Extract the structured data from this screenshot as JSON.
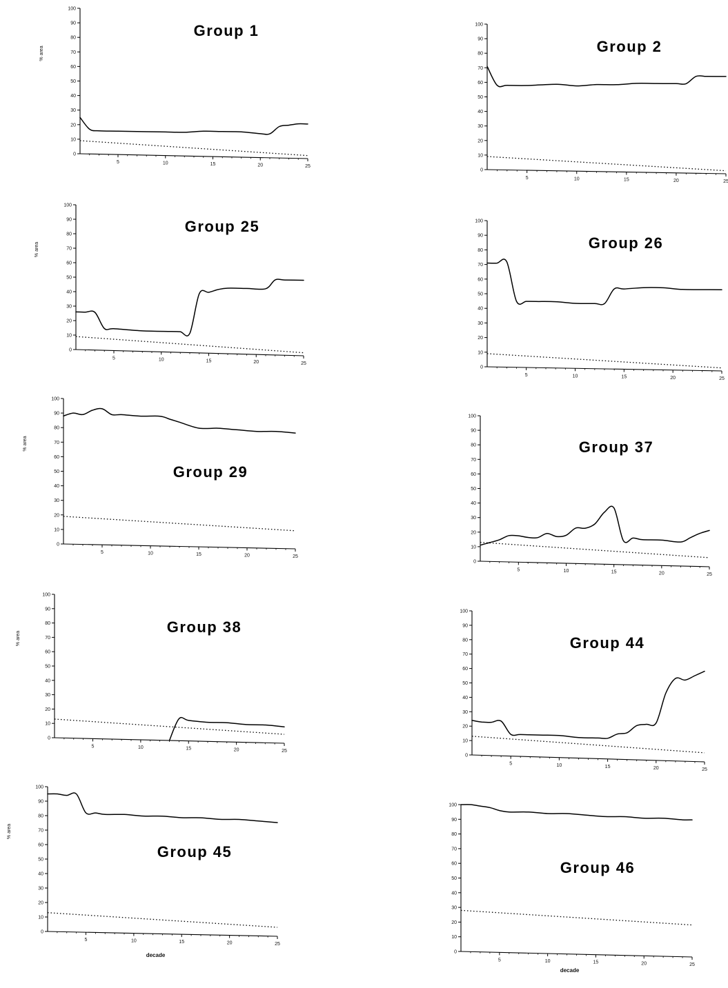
{
  "chart_data": [
    {
      "type": "line",
      "title": "Group 1",
      "xlabel": "",
      "ylabel": "% area",
      "xlim": [
        1,
        25
      ],
      "ylim": [
        0,
        100
      ],
      "xticks": [
        5,
        10,
        15,
        20,
        25
      ],
      "yticks": [
        0,
        10,
        20,
        30,
        40,
        50,
        60,
        70,
        80,
        90,
        100
      ],
      "series": [
        {
          "style": "solid",
          "x": [
            1,
            2,
            3,
            5,
            8,
            10,
            12,
            14,
            16,
            18,
            20,
            21,
            22,
            23,
            24,
            25
          ],
          "y": [
            25,
            17,
            16,
            16,
            16,
            16,
            16,
            17,
            17,
            17,
            16,
            16,
            21,
            22,
            23,
            23
          ]
        },
        {
          "style": "dotted",
          "x": [
            1,
            25
          ],
          "y": [
            9,
            2
          ]
        }
      ]
    },
    {
      "type": "line",
      "title": "Group 2",
      "xlabel": "",
      "ylabel": "",
      "xlim": [
        1,
        25
      ],
      "ylim": [
        0,
        100
      ],
      "xticks": [
        5,
        10,
        15,
        20,
        25
      ],
      "yticks": [
        0,
        10,
        20,
        30,
        40,
        50,
        60,
        70,
        80,
        90,
        100
      ],
      "series": [
        {
          "style": "solid",
          "x": [
            1,
            2,
            3,
            5,
            8,
            10,
            12,
            14,
            16,
            18,
            20,
            21,
            22,
            23,
            24,
            25
          ],
          "y": [
            71,
            58,
            58,
            58,
            59,
            58,
            59,
            59,
            60,
            60,
            60,
            60,
            65,
            65,
            65,
            65
          ]
        },
        {
          "style": "dotted",
          "x": [
            1,
            25
          ],
          "y": [
            9,
            2
          ]
        }
      ]
    },
    {
      "type": "line",
      "title": "Group 25",
      "xlabel": "",
      "ylabel": "% area",
      "xlim": [
        1,
        25
      ],
      "ylim": [
        0,
        100
      ],
      "xticks": [
        5,
        10,
        15,
        20,
        25
      ],
      "yticks": [
        0,
        10,
        20,
        30,
        40,
        50,
        60,
        70,
        80,
        90,
        100
      ],
      "series": [
        {
          "style": "solid",
          "x": [
            1,
            2,
            3,
            4,
            5,
            8,
            11,
            12,
            13,
            14,
            15,
            16,
            17,
            19,
            21,
            22,
            23,
            25
          ],
          "y": [
            26,
            26,
            26,
            15,
            15,
            14,
            14,
            14,
            13,
            40,
            41,
            43,
            44,
            44,
            44,
            50,
            50,
            50
          ]
        },
        {
          "style": "dotted",
          "x": [
            1,
            25
          ],
          "y": [
            9,
            2
          ]
        }
      ]
    },
    {
      "type": "line",
      "title": "Group 26",
      "xlabel": "",
      "ylabel": "",
      "xlim": [
        1,
        25
      ],
      "ylim": [
        0,
        100
      ],
      "xticks": [
        5,
        10,
        15,
        20,
        25
      ],
      "yticks": [
        0,
        10,
        20,
        30,
        40,
        50,
        60,
        70,
        80,
        90,
        100
      ],
      "series": [
        {
          "style": "solid",
          "x": [
            1,
            2,
            3,
            4,
            5,
            6,
            8,
            10,
            12,
            13,
            14,
            15,
            17,
            19,
            21,
            23,
            25
          ],
          "y": [
            71,
            71,
            72,
            45,
            45,
            45,
            45,
            44,
            44,
            44,
            54,
            54,
            55,
            55,
            54,
            54,
            54
          ]
        },
        {
          "style": "dotted",
          "x": [
            1,
            25
          ],
          "y": [
            9,
            2
          ]
        }
      ]
    },
    {
      "type": "line",
      "title": "Group 29",
      "xlabel": "",
      "ylabel": "% area",
      "xlim": [
        1,
        25
      ],
      "ylim": [
        0,
        100
      ],
      "xticks": [
        5,
        10,
        15,
        20,
        25
      ],
      "yticks": [
        0,
        10,
        20,
        30,
        40,
        50,
        60,
        70,
        80,
        90,
        100
      ],
      "series": [
        {
          "style": "solid",
          "x": [
            1,
            2,
            3,
            4,
            5,
            6,
            7,
            9,
            11,
            12,
            13,
            15,
            17,
            19,
            21,
            23,
            25
          ],
          "y": [
            88,
            90,
            89,
            92,
            93,
            89,
            89,
            88,
            88,
            86,
            84,
            80,
            80,
            79,
            78,
            78,
            77
          ]
        },
        {
          "style": "dotted",
          "x": [
            1,
            25
          ],
          "y": [
            19,
            12
          ]
        }
      ]
    },
    {
      "type": "line",
      "title": "Group 37",
      "xlabel": "",
      "ylabel": "",
      "xlim": [
        1,
        25
      ],
      "ylim": [
        0,
        100
      ],
      "xticks": [
        5,
        10,
        15,
        20,
        25
      ],
      "yticks": [
        0,
        10,
        20,
        30,
        40,
        50,
        60,
        70,
        80,
        90,
        100
      ],
      "series": [
        {
          "style": "solid",
          "x": [
            1,
            2,
            3,
            4,
            5,
            6,
            7,
            8,
            9,
            10,
            11,
            12,
            13,
            14,
            15,
            16,
            17,
            18,
            20,
            22,
            23,
            24,
            25
          ],
          "y": [
            11,
            13,
            15,
            18,
            18,
            17,
            17,
            20,
            18,
            19,
            24,
            24,
            27,
            35,
            38,
            16,
            18,
            17,
            17,
            16,
            19,
            22,
            24
          ]
        },
        {
          "style": "dotted",
          "x": [
            1,
            25
          ],
          "y": [
            13,
            6
          ]
        }
      ]
    },
    {
      "type": "line",
      "title": "Group 38",
      "xlabel": "",
      "ylabel": "% area",
      "xlim": [
        1,
        25
      ],
      "ylim": [
        0,
        100
      ],
      "xticks": [
        5,
        10,
        15,
        20,
        25
      ],
      "yticks": [
        0,
        10,
        20,
        30,
        40,
        50,
        60,
        70,
        80,
        90,
        100
      ],
      "series": [
        {
          "style": "solid",
          "x": [
            13,
            14,
            15,
            17,
            19,
            21,
            23,
            25
          ],
          "y": [
            0,
            15,
            14,
            13,
            13,
            12,
            12,
            11
          ]
        },
        {
          "style": "dotted",
          "x": [
            1,
            25
          ],
          "y": [
            13,
            6
          ]
        }
      ]
    },
    {
      "type": "line",
      "title": "Group 44",
      "xlabel": "",
      "ylabel": "",
      "xlim": [
        1,
        25
      ],
      "ylim": [
        0,
        100
      ],
      "xticks": [
        5,
        10,
        15,
        20,
        25
      ],
      "yticks": [
        0,
        10,
        20,
        30,
        40,
        50,
        60,
        70,
        80,
        90,
        100
      ],
      "series": [
        {
          "style": "solid",
          "x": [
            1,
            2,
            3,
            4,
            5,
            6,
            8,
            10,
            12,
            14,
            15,
            16,
            17,
            18,
            19,
            20,
            21,
            22,
            23,
            24,
            25
          ],
          "y": [
            24,
            23,
            23,
            24,
            15,
            15,
            15,
            15,
            14,
            14,
            14,
            17,
            18,
            23,
            24,
            25,
            45,
            55,
            54,
            57,
            60
          ]
        },
        {
          "style": "dotted",
          "x": [
            1,
            25
          ],
          "y": [
            13,
            6
          ]
        }
      ]
    },
    {
      "type": "line",
      "title": "Group 45",
      "xlabel": "decade",
      "ylabel": "% area",
      "xlim": [
        1,
        25
      ],
      "ylim": [
        0,
        100
      ],
      "xticks": [
        5,
        10,
        15,
        20,
        25
      ],
      "yticks": [
        0,
        10,
        20,
        30,
        40,
        50,
        60,
        70,
        80,
        90,
        100
      ],
      "series": [
        {
          "style": "solid",
          "x": [
            1,
            2,
            3,
            4,
            5,
            6,
            7,
            9,
            11,
            13,
            15,
            17,
            19,
            21,
            23,
            25
          ],
          "y": [
            95,
            95,
            94,
            95,
            82,
            82,
            81,
            81,
            80,
            80,
            79,
            79,
            78,
            78,
            77,
            76
          ]
        },
        {
          "style": "dotted",
          "x": [
            1,
            25
          ],
          "y": [
            13,
            6
          ]
        }
      ]
    },
    {
      "type": "line",
      "title": "Group 46",
      "xlabel": "decade",
      "ylabel": "",
      "xlim": [
        1,
        25
      ],
      "ylim": [
        0,
        100
      ],
      "xticks": [
        5,
        10,
        15,
        20,
        25
      ],
      "yticks": [
        0,
        10,
        20,
        30,
        40,
        50,
        60,
        70,
        80,
        90,
        100
      ],
      "series": [
        {
          "style": "solid",
          "x": [
            1,
            2,
            3,
            4,
            5,
            6,
            8,
            10,
            12,
            14,
            16,
            18,
            20,
            22,
            24,
            25
          ],
          "y": [
            100,
            100,
            99,
            98,
            96,
            95,
            95,
            94,
            94,
            93,
            92,
            92,
            91,
            91,
            90,
            90
          ]
        },
        {
          "style": "dotted",
          "x": [
            1,
            25
          ],
          "y": [
            28,
            21
          ]
        }
      ]
    }
  ]
}
